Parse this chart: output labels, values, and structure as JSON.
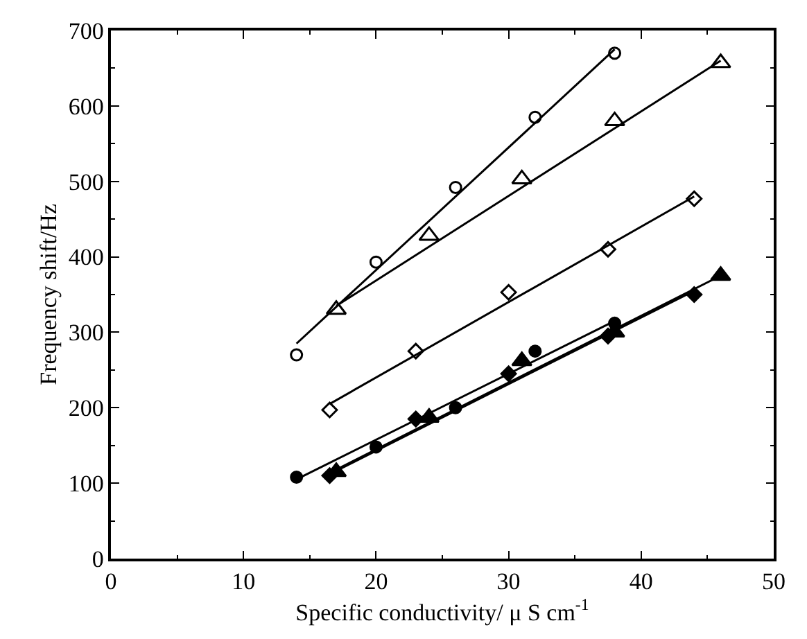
{
  "chart_data": {
    "type": "scatter",
    "xlabel": "Specific conductivity/ μ S cm$^{-1}$",
    "ylabel": "Frequency shift/Hz",
    "xlim": [
      0,
      50
    ],
    "xticks": [
      0,
      10,
      20,
      30,
      40,
      50
    ],
    "ylim": [
      0,
      700
    ],
    "yticks": [
      0,
      100,
      200,
      300,
      400,
      500,
      600,
      700
    ],
    "series": [
      {
        "marker": "circle",
        "color": "#ffffff",
        "x": [
          14,
          20,
          26,
          32,
          38
        ],
        "values": [
          270,
          393,
          492,
          585,
          670
        ]
      },
      {
        "marker": "triangle",
        "color": "#ffffff",
        "x": [
          17,
          24,
          31,
          38,
          46
        ],
        "values": [
          330,
          428,
          503,
          580,
          657
        ]
      },
      {
        "marker": "diamond",
        "color": "#ffffff",
        "x": [
          16.5,
          23,
          30,
          37.5,
          44
        ],
        "values": [
          197,
          275,
          353,
          410,
          477
        ]
      },
      {
        "marker": "circle",
        "color": "#000000",
        "x": [
          14,
          20,
          26,
          32,
          38
        ],
        "values": [
          108,
          148,
          200,
          275,
          312
        ]
      },
      {
        "marker": "triangle",
        "color": "#000000",
        "x": [
          17,
          24,
          31,
          38,
          46
        ],
        "values": [
          115,
          187,
          262,
          300,
          375
        ]
      },
      {
        "marker": "diamond",
        "color": "#000000",
        "x": [
          16.5,
          23,
          30,
          37.5,
          44
        ],
        "values": [
          110,
          185,
          245,
          295,
          350
        ]
      },
      {
        "type": "line",
        "marker": "none",
        "line_style": "solid",
        "color": "#000000",
        "x": [
          14,
          38
        ],
        "values": [
          285,
          675
        ]
      },
      {
        "type": "line",
        "marker": "none",
        "line_style": "solid",
        "color": "#000000",
        "x": [
          17,
          46
        ],
        "values": [
          335,
          660
        ]
      },
      {
        "type": "line",
        "marker": "none",
        "line_style": "solid",
        "color": "#000000",
        "x": [
          16.5,
          44
        ],
        "values": [
          205,
          480
        ]
      },
      {
        "type": "line",
        "marker": "none",
        "line_style": "solid",
        "color": "#000000",
        "x": [
          14,
          38
        ],
        "values": [
          105,
          315
        ]
      },
      {
        "type": "line",
        "marker": "none",
        "line_style": "solid",
        "color": "#000000",
        "x": [
          17,
          46
        ],
        "values": [
          118,
          375
        ]
      },
      {
        "type": "line",
        "marker": "none",
        "line_style": "solid",
        "color": "#000000",
        "x": [
          16.5,
          44
        ],
        "values": [
          112,
          355
        ]
      }
    ]
  }
}
